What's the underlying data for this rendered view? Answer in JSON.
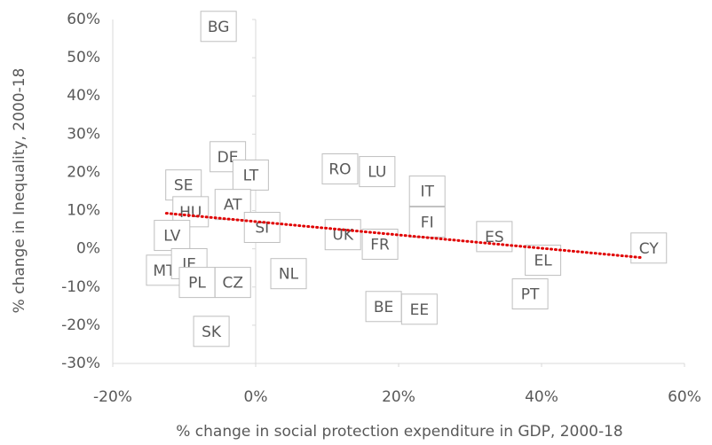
{
  "chart_data": {
    "type": "scatter",
    "x_label": "% change in social protection expenditure in GDP, 2000-18",
    "y_label": "% change in Inequality, 2000-18",
    "labels": [
      "BG",
      "SE",
      "DE",
      "LT",
      "AT",
      "HU",
      "LV",
      "SI",
      "MT",
      "IE",
      "PL",
      "CZ",
      "SK",
      "NL",
      "RO",
      "LU",
      "IT",
      "FI",
      "UK",
      "FR",
      "ES",
      "EL",
      "PT",
      "BE",
      "EE",
      "CY"
    ],
    "x": [
      -5.2,
      -10.1,
      -3.9,
      -0.7,
      -3.2,
      -9.1,
      -11.7,
      0.9,
      -12.8,
      -9.3,
      -8.2,
      -3.2,
      -6.2,
      4.6,
      11.8,
      17.0,
      24.0,
      24.0,
      12.2,
      17.4,
      33.4,
      40.2,
      38.4,
      17.9,
      22.9,
      55.0
    ],
    "values": [
      58.2,
      16.7,
      24.1,
      19.3,
      11.6,
      9.7,
      3.5,
      5.6,
      -5.6,
      -3.9,
      -8.8,
      -8.8,
      -21.6,
      -6.5,
      20.9,
      20.2,
      15.1,
      7.0,
      3.7,
      1.2,
      3.2,
      -3.0,
      -11.8,
      -15.1,
      -15.8,
      0.2
    ],
    "trendline": {
      "x": [
        -12.5,
        54
      ],
      "y": [
        9.3,
        -2.3
      ],
      "color": "#e00000"
    },
    "xlim": [
      -20,
      60
    ],
    "xticks": [
      {
        "value": -20,
        "label": "-20%"
      },
      {
        "value": 0,
        "label": "0%"
      },
      {
        "value": 20,
        "label": "20%"
      },
      {
        "value": 40,
        "label": "40%"
      },
      {
        "value": 60,
        "label": "60%"
      }
    ],
    "ylim": [
      -30,
      60
    ],
    "yticks": [
      {
        "value": -30,
        "label": "-30%"
      },
      {
        "value": -20,
        "label": "-20%"
      },
      {
        "value": -10,
        "label": "-10%"
      },
      {
        "value": 0,
        "label": "0%"
      },
      {
        "value": 10,
        "label": "10%"
      },
      {
        "value": 20,
        "label": "20%"
      },
      {
        "value": 30,
        "label": "30%"
      },
      {
        "value": 40,
        "label": "40%"
      },
      {
        "value": 50,
        "label": "50%"
      },
      {
        "value": 60,
        "label": "60%"
      }
    ]
  }
}
